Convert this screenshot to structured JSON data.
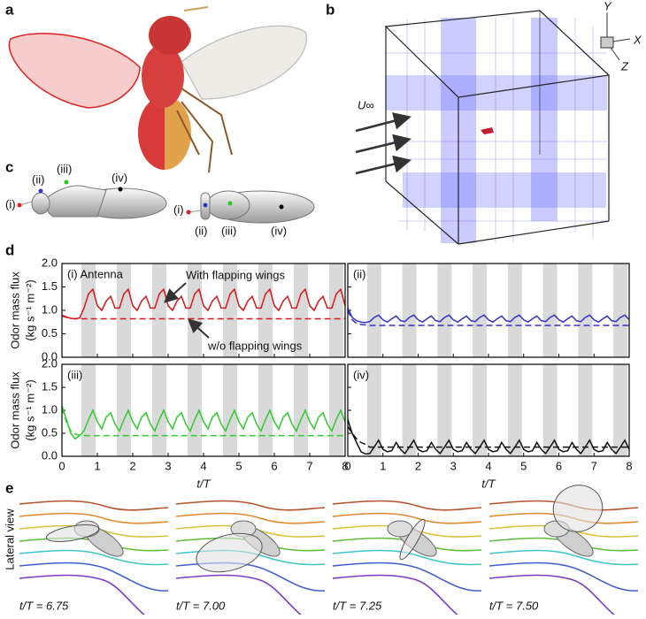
{
  "panel_labels": [
    "a",
    "b",
    "c",
    "d",
    "e"
  ],
  "panel_b": {
    "axis_labels": [
      "Y",
      "X",
      "Z"
    ],
    "flow_label": "U∞"
  },
  "panel_c": {
    "lateral_points": [
      "(i)",
      "(ii)",
      "(iii)",
      "(iv)"
    ],
    "dorsal_points": [
      "(i)",
      "(ii)",
      "(iii)",
      "(iv)"
    ]
  },
  "chart_data": [
    {
      "type": "line",
      "label": "(i) Antenna",
      "annotations": [
        "With flapping wings",
        "w/o flapping wings"
      ],
      "ylabel": [
        "Odor mass flux",
        "(kg s⁻¹ m⁻²)"
      ],
      "show_xtick_labels": false,
      "show_ytick_labels": true,
      "xlim": [
        0,
        8
      ],
      "ylim": [
        0,
        2
      ],
      "xticks": [
        0,
        1,
        2,
        3,
        4,
        5,
        6,
        7,
        8
      ],
      "yticks": [
        {
          "value": 0,
          "label": "0.0"
        },
        {
          "value": 0.5,
          "label": "0.5"
        },
        {
          "value": 1,
          "label": "1.0"
        },
        {
          "value": 1.5,
          "label": "1.5"
        },
        {
          "value": 2,
          "label": "2.0"
        }
      ],
      "bands": [
        [
          0.55,
          0.95
        ],
        [
          1.55,
          1.95
        ],
        [
          2.55,
          2.95
        ],
        [
          3.55,
          3.95
        ],
        [
          4.55,
          4.95
        ],
        [
          5.55,
          5.95
        ],
        [
          6.55,
          6.95
        ],
        [
          7.55,
          7.95
        ]
      ],
      "x": [
        0,
        0.125,
        0.25,
        0.375,
        0.5,
        0.625,
        0.75,
        0.875,
        1,
        1.125,
        1.25,
        1.375,
        1.5,
        1.625,
        1.75,
        1.875,
        2,
        2.125,
        2.25,
        2.375,
        2.5,
        2.625,
        2.75,
        2.875,
        3,
        3.125,
        3.25,
        3.375,
        3.5,
        3.625,
        3.75,
        3.875,
        4,
        4.125,
        4.25,
        4.375,
        4.5,
        4.625,
        4.75,
        4.875,
        5,
        5.125,
        5.25,
        5.375,
        5.5,
        5.625,
        5.75,
        5.875,
        6,
        6.125,
        6.25,
        6.375,
        6.5,
        6.625,
        6.75,
        6.875,
        7,
        7.125,
        7.25,
        7.375,
        7.5,
        7.625,
        7.75,
        7.875,
        8
      ],
      "series": [
        {
          "color": "#d7191c",
          "dash": false,
          "values": [
            0.9,
            0.86,
            0.83,
            0.82,
            0.84,
            1.05,
            1.35,
            1.45,
            1.1,
            1.0,
            1.2,
            1.3,
            1.05,
            1.05,
            1.35,
            1.45,
            1.1,
            1.0,
            1.2,
            1.3,
            1.05,
            1.05,
            1.35,
            1.45,
            1.1,
            1.0,
            1.2,
            1.3,
            1.05,
            1.05,
            1.35,
            1.45,
            1.1,
            1.0,
            1.2,
            1.3,
            1.05,
            1.05,
            1.35,
            1.45,
            1.1,
            1.0,
            1.2,
            1.3,
            1.05,
            1.05,
            1.35,
            1.45,
            1.1,
            1.0,
            1.2,
            1.3,
            1.05,
            1.05,
            1.35,
            1.45,
            1.1,
            1.0,
            1.2,
            1.3,
            1.05,
            1.05,
            1.35,
            1.45,
            1.1
          ]
        },
        {
          "color": "#d7191c",
          "dash": true,
          "values": [
            0.88,
            0.85,
            0.83,
            0.82,
            0.82,
            0.82,
            0.82,
            0.82,
            0.82,
            0.82,
            0.82,
            0.82,
            0.82,
            0.82,
            0.82,
            0.82,
            0.82,
            0.82,
            0.82,
            0.82,
            0.82,
            0.82,
            0.82,
            0.82,
            0.82,
            0.82,
            0.82,
            0.82,
            0.82,
            0.82,
            0.82,
            0.82,
            0.82,
            0.82,
            0.82,
            0.82,
            0.82,
            0.82,
            0.82,
            0.82,
            0.82,
            0.82,
            0.82,
            0.82,
            0.82,
            0.82,
            0.82,
            0.82,
            0.82,
            0.82,
            0.82,
            0.82,
            0.82,
            0.82,
            0.82,
            0.82,
            0.82,
            0.82,
            0.82,
            0.82,
            0.82,
            0.82,
            0.82,
            0.82,
            0.82
          ]
        }
      ]
    },
    {
      "type": "line",
      "label": "(ii)",
      "show_xtick_labels": false,
      "show_ytick_labels": false,
      "xlim": [
        0,
        8
      ],
      "ylim": [
        0,
        2
      ],
      "xticks": [
        0,
        1,
        2,
        3,
        4,
        5,
        6,
        7,
        8
      ],
      "yticks": [
        0,
        0.5,
        1,
        1.5,
        2
      ],
      "bands": [
        [
          0.55,
          0.95
        ],
        [
          1.55,
          1.95
        ],
        [
          2.55,
          2.95
        ],
        [
          3.55,
          3.95
        ],
        [
          4.55,
          4.95
        ],
        [
          5.55,
          5.95
        ],
        [
          6.55,
          6.95
        ],
        [
          7.55,
          7.95
        ]
      ],
      "x": [
        0,
        0.125,
        0.25,
        0.375,
        0.5,
        0.625,
        0.75,
        0.875,
        1,
        1.125,
        1.25,
        1.375,
        1.5,
        1.625,
        1.75,
        1.875,
        2,
        2.125,
        2.25,
        2.375,
        2.5,
        2.625,
        2.75,
        2.875,
        3,
        3.125,
        3.25,
        3.375,
        3.5,
        3.625,
        3.75,
        3.875,
        4,
        4.125,
        4.25,
        4.375,
        4.5,
        4.625,
        4.75,
        4.875,
        5,
        5.125,
        5.25,
        5.375,
        5.5,
        5.625,
        5.75,
        5.875,
        6,
        6.125,
        6.25,
        6.375,
        6.5,
        6.625,
        6.75,
        6.875,
        7,
        7.125,
        7.25,
        7.375,
        7.5,
        7.625,
        7.75,
        7.875,
        8
      ],
      "series": [
        {
          "color": "#3333cc",
          "dash": false,
          "values": [
            1.05,
            0.85,
            0.78,
            0.75,
            0.74,
            0.76,
            0.85,
            0.9,
            0.8,
            0.75,
            0.82,
            0.88,
            0.78,
            0.76,
            0.85,
            0.9,
            0.8,
            0.75,
            0.82,
            0.88,
            0.78,
            0.76,
            0.85,
            0.9,
            0.8,
            0.75,
            0.82,
            0.88,
            0.78,
            0.76,
            0.85,
            0.9,
            0.8,
            0.75,
            0.82,
            0.88,
            0.78,
            0.76,
            0.85,
            0.9,
            0.8,
            0.75,
            0.82,
            0.88,
            0.78,
            0.76,
            0.85,
            0.9,
            0.8,
            0.75,
            0.82,
            0.88,
            0.78,
            0.76,
            0.85,
            0.9,
            0.8,
            0.75,
            0.82,
            0.88,
            0.78,
            0.76,
            0.85,
            0.9,
            0.8
          ]
        },
        {
          "color": "#3333cc",
          "dash": true,
          "values": [
            1.0,
            0.8,
            0.72,
            0.7,
            0.69,
            0.68,
            0.68,
            0.68,
            0.68,
            0.68,
            0.68,
            0.68,
            0.68,
            0.68,
            0.68,
            0.68,
            0.68,
            0.68,
            0.68,
            0.68,
            0.68,
            0.68,
            0.68,
            0.68,
            0.68,
            0.68,
            0.68,
            0.68,
            0.68,
            0.68,
            0.68,
            0.68,
            0.68,
            0.68,
            0.68,
            0.68,
            0.68,
            0.68,
            0.68,
            0.68,
            0.68,
            0.68,
            0.68,
            0.68,
            0.68,
            0.68,
            0.68,
            0.68,
            0.68,
            0.68,
            0.68,
            0.68,
            0.68,
            0.68,
            0.68,
            0.68,
            0.68,
            0.68,
            0.68,
            0.68,
            0.68,
            0.68,
            0.68,
            0.68,
            0.68
          ]
        }
      ]
    },
    {
      "type": "line",
      "label": "(iii)",
      "ylabel": [
        "Odor mass flux",
        "(kg s⁻¹ m⁻²)"
      ],
      "xlabel": "t/T",
      "show_xtick_labels": true,
      "show_ytick_labels": true,
      "xlim": [
        0,
        8
      ],
      "ylim": [
        0,
        2
      ],
      "xticks": [
        0,
        1,
        2,
        3,
        4,
        5,
        6,
        7,
        8
      ],
      "yticks": [
        {
          "value": 0,
          "label": "0.0"
        },
        {
          "value": 0.5,
          "label": "0.5"
        },
        {
          "value": 1,
          "label": "1.0"
        },
        {
          "value": 1.5,
          "label": "1.5"
        },
        {
          "value": 2,
          "label": "2.0"
        }
      ],
      "bands": [
        [
          0.55,
          0.95
        ],
        [
          1.55,
          1.95
        ],
        [
          2.55,
          2.95
        ],
        [
          3.55,
          3.95
        ],
        [
          4.55,
          4.95
        ],
        [
          5.55,
          5.95
        ],
        [
          6.55,
          6.95
        ],
        [
          7.55,
          7.95
        ]
      ],
      "x": [
        0,
        0.125,
        0.25,
        0.375,
        0.5,
        0.625,
        0.75,
        0.875,
        1,
        1.125,
        1.25,
        1.375,
        1.5,
        1.625,
        1.75,
        1.875,
        2,
        2.125,
        2.25,
        2.375,
        2.5,
        2.625,
        2.75,
        2.875,
        3,
        3.125,
        3.25,
        3.375,
        3.5,
        3.625,
        3.75,
        3.875,
        4,
        4.125,
        4.25,
        4.375,
        4.5,
        4.625,
        4.75,
        4.875,
        5,
        5.125,
        5.25,
        5.375,
        5.5,
        5.625,
        5.75,
        5.875,
        6,
        6.125,
        6.25,
        6.375,
        6.5,
        6.625,
        6.75,
        6.875,
        7,
        7.125,
        7.25,
        7.375,
        7.5,
        7.625,
        7.75,
        7.875,
        8
      ],
      "series": [
        {
          "color": "#2ecc2e",
          "dash": false,
          "values": [
            1.1,
            0.8,
            0.5,
            0.38,
            0.45,
            0.55,
            0.8,
            1.0,
            0.75,
            0.6,
            0.85,
            0.95,
            0.7,
            0.55,
            0.8,
            1.0,
            0.75,
            0.6,
            0.85,
            0.95,
            0.7,
            0.55,
            0.8,
            1.0,
            0.75,
            0.6,
            0.85,
            0.95,
            0.7,
            0.55,
            0.8,
            1.0,
            0.75,
            0.6,
            0.85,
            0.95,
            0.7,
            0.55,
            0.8,
            1.0,
            0.75,
            0.6,
            0.85,
            0.95,
            0.7,
            0.55,
            0.8,
            1.0,
            0.75,
            0.6,
            0.85,
            0.95,
            0.7,
            0.55,
            0.8,
            1.0,
            0.75,
            0.6,
            0.85,
            0.95,
            0.7,
            0.55,
            0.8,
            1.0,
            0.75
          ]
        },
        {
          "color": "#2ecc2e",
          "dash": true,
          "values": [
            1.05,
            0.75,
            0.55,
            0.48,
            0.46,
            0.45,
            0.45,
            0.45,
            0.45,
            0.45,
            0.45,
            0.45,
            0.45,
            0.45,
            0.45,
            0.45,
            0.45,
            0.45,
            0.45,
            0.45,
            0.45,
            0.45,
            0.45,
            0.45,
            0.45,
            0.45,
            0.45,
            0.45,
            0.45,
            0.45,
            0.45,
            0.45,
            0.45,
            0.45,
            0.45,
            0.45,
            0.45,
            0.45,
            0.45,
            0.45,
            0.45,
            0.45,
            0.45,
            0.45,
            0.45,
            0.45,
            0.45,
            0.45,
            0.45,
            0.45,
            0.45,
            0.45,
            0.45,
            0.45,
            0.45,
            0.45,
            0.45,
            0.45,
            0.45,
            0.45,
            0.45,
            0.45,
            0.45,
            0.45,
            0.45
          ]
        }
      ]
    },
    {
      "type": "line",
      "label": "(iv)",
      "xlabel": "t/T",
      "show_xtick_labels": true,
      "show_ytick_labels": false,
      "xlim": [
        0,
        8
      ],
      "ylim": [
        0,
        2
      ],
      "xticks": [
        0,
        1,
        2,
        3,
        4,
        5,
        6,
        7,
        8
      ],
      "yticks": [
        0,
        0.5,
        1,
        1.5,
        2
      ],
      "bands": [
        [
          0.55,
          0.95
        ],
        [
          1.55,
          1.95
        ],
        [
          2.55,
          2.95
        ],
        [
          3.55,
          3.95
        ],
        [
          4.55,
          4.95
        ],
        [
          5.55,
          5.95
        ],
        [
          6.55,
          6.95
        ],
        [
          7.55,
          7.95
        ]
      ],
      "x": [
        0,
        0.125,
        0.25,
        0.375,
        0.5,
        0.625,
        0.75,
        0.875,
        1,
        1.125,
        1.25,
        1.375,
        1.5,
        1.625,
        1.75,
        1.875,
        2,
        2.125,
        2.25,
        2.375,
        2.5,
        2.625,
        2.75,
        2.875,
        3,
        3.125,
        3.25,
        3.375,
        3.5,
        3.625,
        3.75,
        3.875,
        4,
        4.125,
        4.25,
        4.375,
        4.5,
        4.625,
        4.75,
        4.875,
        5,
        5.125,
        5.25,
        5.375,
        5.5,
        5.625,
        5.75,
        5.875,
        6,
        6.125,
        6.25,
        6.375,
        6.5,
        6.625,
        6.75,
        6.875,
        7,
        7.125,
        7.25,
        7.375,
        7.5,
        7.625,
        7.75,
        7.875,
        8
      ],
      "series": [
        {
          "color": "#111111",
          "dash": false,
          "values": [
            0.8,
            0.5,
            0.3,
            0.1,
            0.05,
            0.06,
            0.2,
            0.35,
            0.15,
            0.1,
            0.12,
            0.3,
            0.15,
            0.06,
            0.2,
            0.35,
            0.15,
            0.1,
            0.12,
            0.3,
            0.15,
            0.06,
            0.2,
            0.35,
            0.15,
            0.1,
            0.12,
            0.3,
            0.15,
            0.06,
            0.2,
            0.35,
            0.15,
            0.1,
            0.12,
            0.3,
            0.15,
            0.06,
            0.2,
            0.35,
            0.15,
            0.1,
            0.12,
            0.3,
            0.15,
            0.06,
            0.2,
            0.35,
            0.15,
            0.1,
            0.12,
            0.3,
            0.15,
            0.06,
            0.2,
            0.35,
            0.15,
            0.1,
            0.12,
            0.3,
            0.15,
            0.06,
            0.2,
            0.35,
            0.15
          ]
        },
        {
          "color": "#111111",
          "dash": true,
          "values": [
            0.65,
            0.5,
            0.38,
            0.3,
            0.26,
            0.2,
            0.2,
            0.2,
            0.2,
            0.2,
            0.2,
            0.2,
            0.2,
            0.2,
            0.2,
            0.2,
            0.2,
            0.2,
            0.2,
            0.2,
            0.2,
            0.2,
            0.2,
            0.2,
            0.2,
            0.2,
            0.2,
            0.2,
            0.2,
            0.2,
            0.2,
            0.2,
            0.2,
            0.2,
            0.2,
            0.2,
            0.2,
            0.2,
            0.2,
            0.2,
            0.2,
            0.2,
            0.2,
            0.2,
            0.2,
            0.2,
            0.2,
            0.2,
            0.2,
            0.2,
            0.2,
            0.2,
            0.2,
            0.2,
            0.2,
            0.2,
            0.2,
            0.2,
            0.2,
            0.2,
            0.2,
            0.2,
            0.2,
            0.2,
            0.2
          ]
        }
      ]
    }
  ],
  "panel_e": {
    "ylabel": "Lateral view",
    "frames": [
      "t/T = 6.75",
      "t/T = 7.00",
      "t/T = 7.25",
      "t/T = 7.50"
    ]
  }
}
